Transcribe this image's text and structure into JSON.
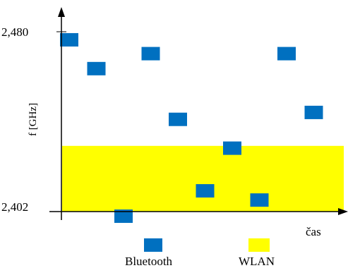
{
  "chart_data": {
    "type": "scatter",
    "title": "",
    "xlabel": "čas",
    "ylabel": "f [GHz]",
    "ylim": [
      2.402,
      2.48
    ],
    "y_ticks": [
      {
        "value": 2.48,
        "label": "2,480"
      },
      {
        "value": 2.402,
        "label": "2,402"
      }
    ],
    "grid": false,
    "legend_position": "bottom",
    "wlan_band": {
      "name": "WLAN",
      "color": "#ffff00",
      "y_range": [
        2.402,
        2.4305
      ]
    },
    "bluetooth": {
      "name": "Bluetooth",
      "color": "#0070c0",
      "points": [
        {
          "x": 1,
          "y": 2.4765
        },
        {
          "x": 2,
          "y": 2.464
        },
        {
          "x": 3,
          "y": 2.4
        },
        {
          "x": 4,
          "y": 2.4705
        },
        {
          "x": 5,
          "y": 2.442
        },
        {
          "x": 6,
          "y": 2.411
        },
        {
          "x": 7,
          "y": 2.4295
        },
        {
          "x": 8,
          "y": 2.407
        },
        {
          "x": 9,
          "y": 2.4705
        },
        {
          "x": 10,
          "y": 2.445
        }
      ]
    }
  }
}
